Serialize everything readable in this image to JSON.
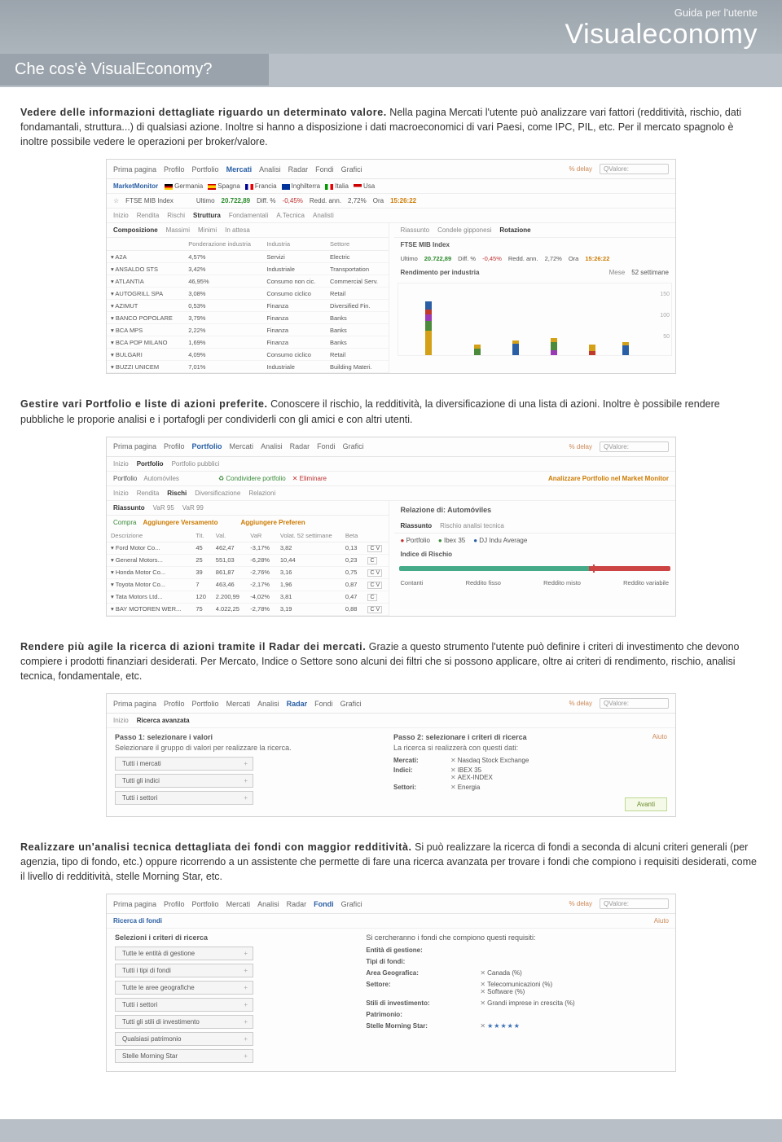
{
  "header": {
    "subtitle": "Guida per l'utente",
    "logotitle": "Visualeconomy"
  },
  "sectionTitle": "Che cos'è VisualEconomy?",
  "para1": {
    "lead": "Vedere delle informazioni dettagliate riguardo un determinato valore.",
    "body": " Nella pagina Mercati l'utente può analizzare vari fattori (redditività, rischio, dati fondamantali, struttura...) di qualsiasi azione. Inoltre si hanno a disposizione i dati macroeconomici di vari Paesi, come IPC, PIL, etc. Per il mercato spagnolo è inoltre possibile vedere le operazioni per broker/valore."
  },
  "para2": {
    "lead": "Gestire vari Portfolio e liste di azioni preferite.",
    "body": " Conoscere il rischio, la redditività, la diversificazione di una lista di azioni. Inoltre è possibile rendere pubbliche le proporie analisi e i portafogli per condividerli con gli amici e con altri utenti."
  },
  "para3": {
    "lead": "Rendere più agile la ricerca di azioni tramite il Radar dei mercati.",
    "body": " Grazie a questo strumento l'utente può definire i criteri di investimento che devono compiere i prodotti finanziari desiderati. Per Mercato, Indice o Settore sono alcuni dei filtri che si possono applicare, oltre ai criteri di rendimento, rischio, analisi tecnica, fondamentale, etc."
  },
  "para4": {
    "lead": "Realizzare un'analisi tecnica dettagliata dei fondi con maggior redditività.",
    "body": " Si può realizzare la ricerca di fondi a seconda di alcuni criteri generali (per agenzia, tipo di fondo, etc.) oppure ricorrendo a un assistente che permette di fare una ricerca avanzata per trovare i fondi che compiono i requisiti desiderati, come il livello di redditività, stelle Morning Star, etc."
  },
  "common": {
    "navTabs": [
      "Prima pagina",
      "Profilo",
      "Portfolio",
      "Mercati",
      "Analisi",
      "Radar",
      "Fondi",
      "Grafici"
    ],
    "delay": "% delay",
    "searchPlaceholder": "QValore:"
  },
  "shot1": {
    "activeTab": "Mercati",
    "monitor": {
      "label": "MarketMonitor",
      "countries": [
        "Germania",
        "Spagna",
        "Francia",
        "Inghilterra",
        "Italia",
        "Usa"
      ]
    },
    "indexRow": {
      "name": "FTSE MIB Index",
      "ultimoLbl": "Ultimo",
      "ultimo": "20.722,89",
      "diffLbl": "Diff. %",
      "diff": "-0,45%",
      "reddLbl": "Redd. ann.",
      "redd": "2,72%",
      "oraLbl": "Ora",
      "ora": "15:26:22"
    },
    "tabs2a": [
      "Inizio",
      "Rendita",
      "Rischi",
      "Struttura",
      "Fondamentali",
      "A.Tecnica",
      "Analisti"
    ],
    "tabs2a_active": "Struttura",
    "tabs3": [
      "Composizione",
      "Massimi",
      "Minimi",
      "In attesa"
    ],
    "tabs3_active": "Composizione",
    "rightTabs": [
      "Riassunto",
      "Condele gipponesi",
      "Rotazione"
    ],
    "rightTabs_active": "Rotazione",
    "tableCols": [
      "Ponderazione industria",
      "Industria",
      "Settore"
    ],
    "rows": [
      {
        "n": "A2A",
        "p": "4,57%",
        "i": "Servizi",
        "s": "Electric"
      },
      {
        "n": "ANSALDO STS",
        "p": "3,42%",
        "i": "Industriale",
        "s": "Transportation"
      },
      {
        "n": "ATLANTIA",
        "p": "46,95%",
        "i": "Consumo non cic.",
        "s": "Commercial Serv."
      },
      {
        "n": "AUTOGRILL SPA",
        "p": "3,08%",
        "i": "Consumo ciclico",
        "s": "Retail"
      },
      {
        "n": "AZIMUT",
        "p": "0,53%",
        "i": "Finanza",
        "s": "Diversified Fin."
      },
      {
        "n": "BANCO POPOLARE",
        "p": "3,79%",
        "i": "Finanza",
        "s": "Banks"
      },
      {
        "n": "BCA MPS",
        "p": "2,22%",
        "i": "Finanza",
        "s": "Banks"
      },
      {
        "n": "BCA POP MILANO",
        "p": "1,69%",
        "i": "Finanza",
        "s": "Banks"
      },
      {
        "n": "BULGARI",
        "p": "4,09%",
        "i": "Consumo ciclico",
        "s": "Retail"
      },
      {
        "n": "BUZZI UNICEM",
        "p": "7,01%",
        "i": "Industriale",
        "s": "Building Materi."
      }
    ],
    "rightHeader": {
      "title": "FTSE MIB Index",
      "ultimo": "20.722,89",
      "diff": "-0,45%",
      "redd": "2,72%",
      "ora": "15:26:22",
      "sub": "Rendimento per industria",
      "periodLbl": "Mese",
      "period": "52 settimane"
    },
    "chart": {
      "ylabels": [
        "150",
        "100",
        "50"
      ],
      "bars": [
        {
          "x": 10,
          "stacks": [
            [
              "#d4a017",
              30
            ],
            [
              "#4a8a3a",
              12
            ],
            [
              "#9a3ab5",
              8
            ],
            [
              "#c0392b",
              6
            ],
            [
              "#2a5fa5",
              10
            ]
          ]
        },
        {
          "x": 28,
          "stacks": [
            [
              "#4a8a3a",
              8
            ],
            [
              "#d4a017",
              5
            ]
          ]
        },
        {
          "x": 42,
          "stacks": [
            [
              "#2a5fa5",
              14
            ],
            [
              "#d4a017",
              4
            ]
          ]
        },
        {
          "x": 56,
          "stacks": [
            [
              "#9a3ab5",
              6
            ],
            [
              "#4a8a3a",
              10
            ],
            [
              "#d4a017",
              5
            ]
          ]
        },
        {
          "x": 70,
          "stacks": [
            [
              "#c0392b",
              5
            ],
            [
              "#d4a017",
              8
            ]
          ]
        },
        {
          "x": 82,
          "stacks": [
            [
              "#2a5fa5",
              12
            ],
            [
              "#d4a017",
              4
            ]
          ]
        }
      ]
    }
  },
  "shot2": {
    "activeTab": "Portfolio",
    "subnav": [
      "Inizio",
      "Portfolio",
      "Portfolio pubblici"
    ],
    "subnav_active": "Portfolio",
    "portRow": {
      "label": "Portfolio",
      "name": "Automóviles",
      "share": "Condividere portfolio",
      "del": "Eliminare",
      "analyze": "Analizzare Portfolio nel Market Monitor"
    },
    "tabs2": [
      "Inizio",
      "Rendita",
      "Rischi",
      "Diversificazione",
      "Relazioni"
    ],
    "tabs2_active": "Rischi",
    "tabs3": [
      "Riassunto",
      "VaR 95",
      "VaR 99"
    ],
    "tabs3_active": "Riassunto",
    "rightTitle": "Relazione di: Automóviles",
    "rightTabs": [
      "Riassunto",
      "Rischio analisi tecnica"
    ],
    "rightTabs_active": "Riassunto",
    "legend": [
      "Portfolio",
      "Ibex 35",
      "DJ Indu Average"
    ],
    "legendColors": [
      "#c03030",
      "#3a8a3a",
      "#2a5fa5"
    ],
    "riskLbl": "Indice di Rischio",
    "footLabels": [
      "Contanti",
      "Reddito fisso",
      "Reddito misto",
      "Reddito variabile"
    ],
    "actions": {
      "compra": "Compra",
      "agg": "Aggiungere Versamento",
      "pref": "Aggiungere Preferen"
    },
    "cols": [
      "Descrizione",
      "Tit.",
      "Val.",
      "VaR",
      "Volat. 52 settimane",
      "Beta",
      ""
    ],
    "rows": [
      {
        "d": "Ford Motor Co...",
        "t": "45",
        "v": "462,47",
        "var": "-3,17%",
        "vol": "3,82",
        "b": "0,13",
        "btn": "C V"
      },
      {
        "d": "General Motors...",
        "t": "25",
        "v": "551,03",
        "var": "-6,28%",
        "vol": "10,44",
        "b": "0,23",
        "btn": "C"
      },
      {
        "d": "Honda Motor Co...",
        "t": "39",
        "v": "861,87",
        "var": "-2,76%",
        "vol": "3,16",
        "b": "0,75",
        "btn": "C V"
      },
      {
        "d": "Toyota Motor Co...",
        "t": "7",
        "v": "463,46",
        "var": "-2,17%",
        "vol": "1,96",
        "b": "0,87",
        "btn": "C V"
      },
      {
        "d": "Tata Motors Ltd...",
        "t": "120",
        "v": "2.200,99",
        "var": "-4,02%",
        "vol": "3,81",
        "b": "0,47",
        "btn": "C"
      },
      {
        "d": "BAY MOTOREN WER...",
        "t": "75",
        "v": "4.022,25",
        "var": "-2,78%",
        "vol": "3,19",
        "b": "0,88",
        "btn": "C V"
      }
    ]
  },
  "shot3": {
    "activeTab": "Radar",
    "subnav": [
      "Inizio",
      "Ricerca avanzata"
    ],
    "subnav_active": "Ricerca avanzata",
    "step1": "Passo 1: selezionare i valori",
    "step1sub": "Selezionare il gruppo di valori per realizzare la ricerca.",
    "step2": "Passo 2: selezionare i criteri di ricerca",
    "step2sub": "La ricerca si realizzerà con questi dati:",
    "aiuto": "Aiuto",
    "filters": [
      "Tutti i mercati",
      "Tutti gli indici",
      "Tutti i settori"
    ],
    "criteria": [
      {
        "k": "Mercati:",
        "v": [
          "Nasdaq Stock Exchange"
        ]
      },
      {
        "k": "Indici:",
        "v": [
          "IBEX 35",
          "AEX-INDEX"
        ]
      },
      {
        "k": "Settori:",
        "v": [
          "Energia"
        ]
      }
    ],
    "avanti": "Avanti"
  },
  "shot4": {
    "activeTab": "Fondi",
    "title": "Ricerca di fondi",
    "aiuto": "Aiuto",
    "leftTitle": "Selezioni i criteri di ricerca",
    "filters": [
      "Tutte le entità di gestione",
      "Tutti i tipi di fondi",
      "Tutte le aree geografiche",
      "Tutti i settori",
      "Tutti gli stili di investimento",
      "Qualsiasi patrimonio",
      "Stelle Morning Star"
    ],
    "rightTitle": "Si cercheranno i fondi che compiono questi requisiti:",
    "criteria": [
      {
        "k": "Entità di gestione:",
        "v": []
      },
      {
        "k": "Tipi di fondi:",
        "v": []
      },
      {
        "k": "Area Geografica:",
        "v": [
          "Canada (%)"
        ]
      },
      {
        "k": "Settore:",
        "v": [
          "Telecomunicazioni (%)",
          "Software (%)"
        ]
      },
      {
        "k": "Stili di investimento:",
        "v": [
          "Grandi imprese in crescita (%)"
        ]
      },
      {
        "k": "Patrimonio:",
        "v": []
      },
      {
        "k": "Stelle Morning Star:",
        "v": [
          "★★★★★"
        ]
      }
    ]
  }
}
